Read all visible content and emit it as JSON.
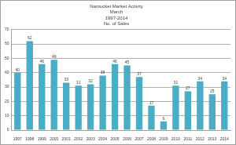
{
  "chart_data": {
    "type": "bar",
    "title": "Nantucket Market Activity",
    "subtitle": [
      "March",
      "1997-2014",
      "No. of Sales"
    ],
    "categories": [
      "1997",
      "1998",
      "1999",
      "2000",
      "2001",
      "2002",
      "2003",
      "2004",
      "2005",
      "2006",
      "2007",
      "2008",
      "2009",
      "2010",
      "2011",
      "2012",
      "2013",
      "2014"
    ],
    "values": [
      40,
      62,
      46,
      49,
      33,
      31,
      32,
      38,
      46,
      45,
      37,
      17,
      6,
      31,
      27,
      34,
      25,
      34
    ],
    "color": "#4bacc6",
    "ylim": [
      0,
      70
    ],
    "yticks": [
      0,
      10,
      20,
      30,
      40,
      50,
      60,
      70
    ],
    "grid": true,
    "data_labels": true
  }
}
